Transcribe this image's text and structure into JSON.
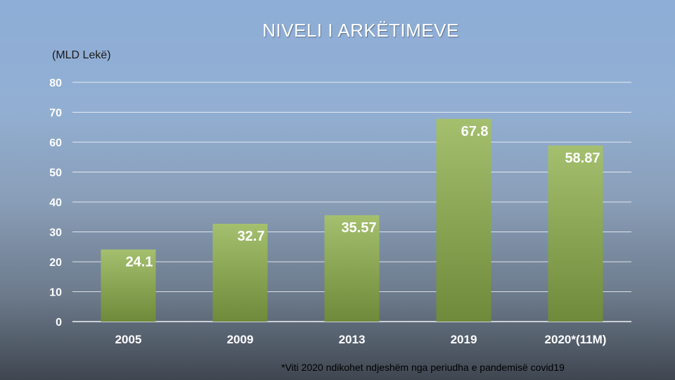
{
  "chart_data": {
    "type": "bar",
    "title": "NIVELI I ARKËTIMEVE",
    "ylabel": "(MLD Lekë)",
    "xlabel": "",
    "categories": [
      "2005",
      "2009",
      "2013",
      "2019",
      "2020*(11M)"
    ],
    "values": [
      24.1,
      32.7,
      35.57,
      67.8,
      58.87
    ],
    "data_labels": [
      "24.1",
      "32.7",
      "35.57",
      "67.8",
      "58.87"
    ],
    "ylim": [
      0,
      80
    ],
    "yticks": [
      "0",
      "10",
      "20",
      "30",
      "40",
      "50",
      "60",
      "70",
      "80"
    ],
    "grid": true,
    "legend": "none",
    "bar_color_top": "#a4c06e",
    "bar_color_bottom": "#6f8a3a",
    "footnote": "*Viti 2020 ndikohet ndjeshëm nga periudha e pandemisë covid19"
  }
}
